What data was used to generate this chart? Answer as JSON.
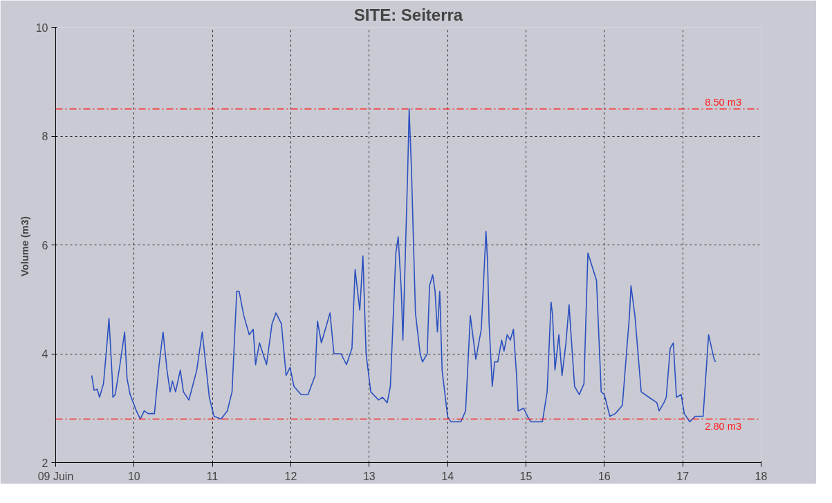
{
  "chart_data": {
    "type": "line",
    "title": "SITE: Seiterra",
    "ylabel": "Volume  (m3)",
    "x": [
      9.46,
      9.49,
      9.53,
      9.56,
      9.61,
      9.65,
      9.68,
      9.72,
      9.73,
      9.76,
      9.82,
      9.88,
      9.91,
      9.95,
      10.03,
      10.08,
      10.13,
      10.18,
      10.26,
      10.32,
      10.37,
      10.42,
      10.46,
      10.49,
      10.53,
      10.59,
      10.63,
      10.7,
      10.8,
      10.87,
      10.96,
      11.02,
      11.11,
      11.19,
      11.25,
      11.31,
      11.34,
      11.4,
      11.47,
      11.52,
      11.55,
      11.6,
      11.69,
      11.76,
      11.81,
      11.88,
      11.94,
      11.99,
      12.04,
      12.13,
      12.22,
      12.31,
      12.34,
      12.39,
      12.5,
      12.55,
      12.64,
      12.71,
      12.78,
      12.82,
      12.88,
      12.92,
      12.96,
      13.02,
      13.12,
      13.17,
      13.23,
      13.27,
      13.34,
      13.37,
      13.41,
      13.43,
      13.45,
      13.49,
      13.51,
      13.54,
      13.59,
      13.65,
      13.68,
      13.74,
      13.77,
      13.81,
      13.84,
      13.87,
      13.9,
      13.93,
      14.0,
      14.04,
      14.17,
      14.23,
      14.29,
      14.33,
      14.36,
      14.43,
      14.49,
      14.51,
      14.53,
      14.57,
      14.6,
      14.64,
      14.69,
      14.72,
      14.76,
      14.8,
      14.84,
      14.88,
      14.9,
      14.97,
      15.02,
      15.06,
      15.21,
      15.27,
      15.32,
      15.34,
      15.37,
      15.42,
      15.46,
      15.51,
      15.55,
      15.58,
      15.62,
      15.68,
      15.74,
      15.79,
      15.9,
      15.96,
      16.0,
      16.07,
      16.14,
      16.23,
      16.32,
      16.34,
      16.39,
      16.47,
      16.57,
      16.67,
      16.7,
      16.76,
      16.79,
      16.84,
      16.88,
      16.92,
      16.98,
      17.02,
      17.09,
      17.16,
      17.26,
      17.33,
      17.4,
      17.42
    ],
    "series": [
      {
        "color": "#2a4fc0",
        "values": [
          3.6,
          3.33,
          3.35,
          3.2,
          3.45,
          4.1,
          4.65,
          3.6,
          3.2,
          3.25,
          3.8,
          4.4,
          3.55,
          3.25,
          2.95,
          2.8,
          2.95,
          2.9,
          2.9,
          3.8,
          4.4,
          3.7,
          3.3,
          3.5,
          3.3,
          3.7,
          3.3,
          3.15,
          3.7,
          4.4,
          3.2,
          2.85,
          2.8,
          2.95,
          3.3,
          5.15,
          5.15,
          4.7,
          4.35,
          4.45,
          3.8,
          4.2,
          3.8,
          4.55,
          4.75,
          4.55,
          3.6,
          3.75,
          3.4,
          3.25,
          3.25,
          3.6,
          4.6,
          4.2,
          4.75,
          4.0,
          4.0,
          3.8,
          4.1,
          5.55,
          4.8,
          5.8,
          4.0,
          3.3,
          3.15,
          3.2,
          3.1,
          3.4,
          5.85,
          6.15,
          5.15,
          4.25,
          5.25,
          7.3,
          8.5,
          7.35,
          4.75,
          4.0,
          3.85,
          4.0,
          5.25,
          5.45,
          5.15,
          4.4,
          5.15,
          3.7,
          2.85,
          2.75,
          2.75,
          2.95,
          4.7,
          4.25,
          3.9,
          4.45,
          6.25,
          5.7,
          4.55,
          3.4,
          3.85,
          3.85,
          4.25,
          4.05,
          4.35,
          4.25,
          4.45,
          3.6,
          2.95,
          3.0,
          2.85,
          2.75,
          2.75,
          3.3,
          4.95,
          4.7,
          3.7,
          4.35,
          3.6,
          4.2,
          4.9,
          4.25,
          3.4,
          3.25,
          3.45,
          5.85,
          5.35,
          3.3,
          3.25,
          2.85,
          2.9,
          3.05,
          4.7,
          5.25,
          4.7,
          3.3,
          3.2,
          3.1,
          2.95,
          3.1,
          3.2,
          4.1,
          4.2,
          3.2,
          3.25,
          2.9,
          2.75,
          2.85,
          2.85,
          4.35,
          3.9,
          3.85
        ]
      }
    ],
    "xlim": [
      9,
      18
    ],
    "xticks": [
      {
        "value": 9,
        "label": "09 Juin"
      },
      10,
      11,
      12,
      13,
      14,
      15,
      16,
      17,
      18
    ],
    "ylim": [
      2,
      10
    ],
    "yticks": [
      2,
      4,
      6,
      8,
      10
    ],
    "grid": true,
    "marker": "none",
    "line_style": "solid",
    "ref_lines": [
      {
        "axis": "y",
        "value": 8.5,
        "label": "8.50 m3",
        "color": "#ff2020",
        "line_style": "dashed"
      },
      {
        "axis": "y",
        "value": 2.8,
        "label": "2.80 m3",
        "color": "#ff2020",
        "line_style": "dashed"
      }
    ]
  }
}
